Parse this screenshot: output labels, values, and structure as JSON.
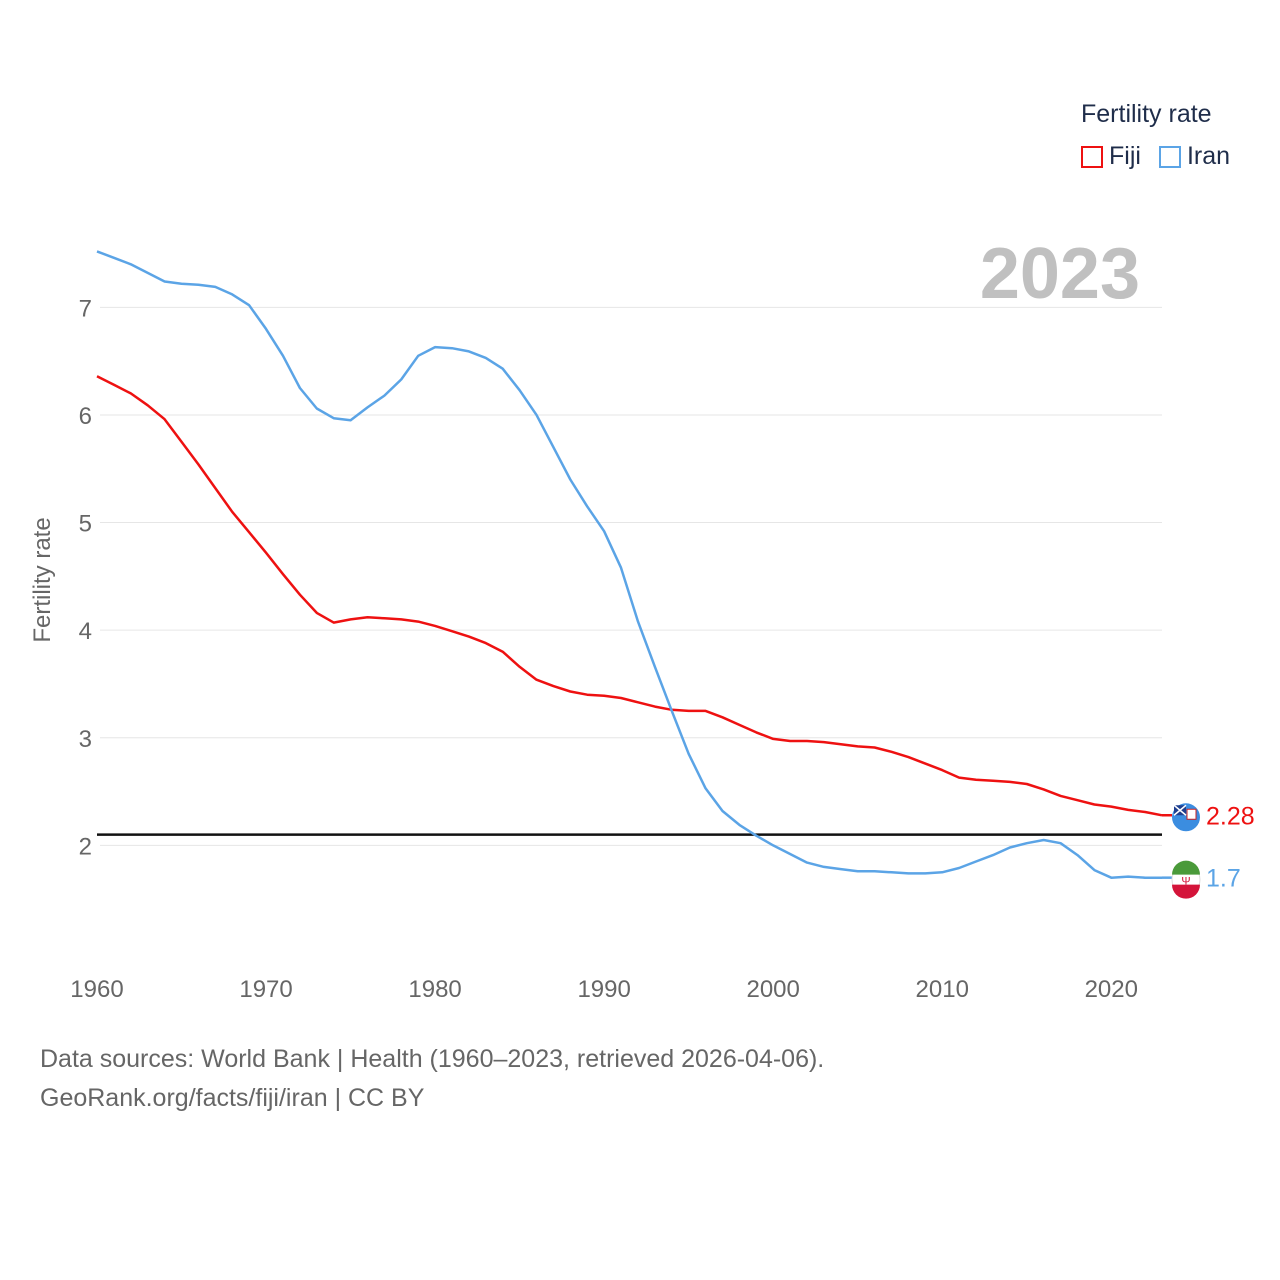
{
  "legend": {
    "title": "Fertility rate",
    "items": [
      {
        "name": "Fiji",
        "color": "#ee1111"
      },
      {
        "name": "Iran",
        "color": "#5ba4e6"
      }
    ]
  },
  "footer": {
    "line1": "Data sources: World Bank | Health (1960–2023, retrieved 2026-04-06).",
    "line2": "GeoRank.org/facts/fiji/iran | CC BY"
  },
  "chart_data": {
    "type": "line",
    "title": "Fertility rate",
    "current_year": "2023",
    "xlabel": "",
    "ylabel": "Fertility rate",
    "xlim": [
      1960,
      2023
    ],
    "ylim": [
      1.0,
      7.7
    ],
    "x_ticks": [
      1960,
      1970,
      1980,
      1990,
      2000,
      2010,
      2020
    ],
    "y_ticks": [
      2,
      3,
      4,
      5,
      6,
      7
    ],
    "reference_line": 2.1,
    "x": [
      1960,
      1961,
      1962,
      1963,
      1964,
      1965,
      1966,
      1967,
      1968,
      1969,
      1970,
      1971,
      1972,
      1973,
      1974,
      1975,
      1976,
      1977,
      1978,
      1979,
      1980,
      1981,
      1982,
      1983,
      1984,
      1985,
      1986,
      1987,
      1988,
      1989,
      1990,
      1991,
      1992,
      1993,
      1994,
      1995,
      1996,
      1997,
      1998,
      1999,
      2000,
      2001,
      2002,
      2003,
      2004,
      2005,
      2006,
      2007,
      2008,
      2009,
      2010,
      2011,
      2012,
      2013,
      2014,
      2015,
      2016,
      2017,
      2018,
      2019,
      2020,
      2021,
      2022,
      2023
    ],
    "series": [
      {
        "name": "Fiji",
        "color": "#ee1111",
        "end_label": "2.28",
        "values": [
          6.36,
          6.28,
          6.2,
          6.09,
          5.96,
          5.75,
          5.54,
          5.32,
          5.1,
          4.91,
          4.72,
          4.52,
          4.33,
          4.16,
          4.07,
          4.1,
          4.12,
          4.11,
          4.1,
          4.08,
          4.04,
          3.99,
          3.94,
          3.88,
          3.8,
          3.66,
          3.54,
          3.48,
          3.43,
          3.4,
          3.39,
          3.37,
          3.33,
          3.29,
          3.26,
          3.25,
          3.25,
          3.19,
          3.12,
          3.05,
          2.99,
          2.97,
          2.97,
          2.96,
          2.94,
          2.92,
          2.91,
          2.87,
          2.82,
          2.76,
          2.7,
          2.63,
          2.61,
          2.6,
          2.59,
          2.57,
          2.52,
          2.46,
          2.42,
          2.38,
          2.36,
          2.33,
          2.31,
          2.28
        ]
      },
      {
        "name": "Iran",
        "color": "#5ba4e6",
        "end_label": "1.7",
        "values": [
          7.52,
          7.46,
          7.4,
          7.32,
          7.24,
          7.22,
          7.21,
          7.19,
          7.12,
          7.02,
          6.8,
          6.55,
          6.25,
          6.06,
          5.97,
          5.95,
          6.07,
          6.18,
          6.33,
          6.55,
          6.63,
          6.62,
          6.59,
          6.53,
          6.43,
          6.23,
          6.0,
          5.7,
          5.4,
          5.15,
          4.92,
          4.58,
          4.08,
          3.66,
          3.25,
          2.85,
          2.53,
          2.32,
          2.19,
          2.09,
          2.0,
          1.92,
          1.84,
          1.8,
          1.78,
          1.76,
          1.76,
          1.75,
          1.74,
          1.74,
          1.75,
          1.79,
          1.85,
          1.91,
          1.98,
          2.02,
          2.05,
          2.02,
          1.91,
          1.77,
          1.7,
          1.71,
          1.7,
          1.7
        ]
      }
    ]
  }
}
